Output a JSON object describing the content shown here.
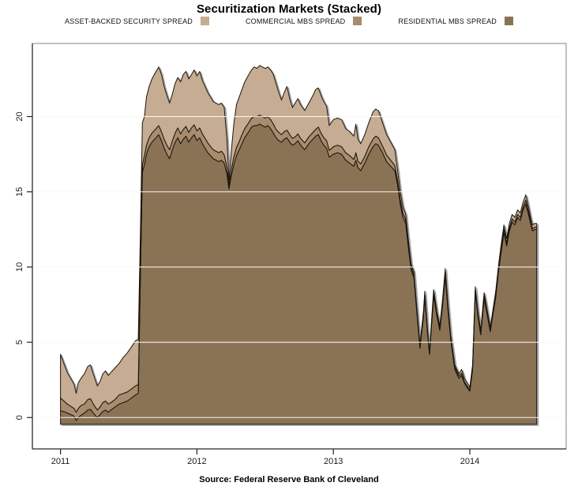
{
  "header": {
    "title": "Securitization Markets (Stacked)"
  },
  "legend": {
    "items": [
      {
        "label": "ASSET-BACKED SECURITY SPREAD",
        "color": "#c5ac92"
      },
      {
        "label": "COMMERCIAL MBS SPREAD",
        "color": "#a88c6e"
      },
      {
        "label": "RESIDENTIAL MBS SPREAD",
        "color": "#8a7355"
      }
    ]
  },
  "footer": {
    "source": "Source: Federal Reserve Bank of Cleveland"
  },
  "chart_data": {
    "type": "area",
    "stacked": true,
    "title": "Securitization Markets (Stacked)",
    "xlabel": "",
    "ylabel": "",
    "x_ticks": [
      2011,
      2012,
      2013,
      2014
    ],
    "y_ticks": [
      0,
      5,
      10,
      15,
      20
    ],
    "xlim": [
      2010.79,
      2014.71
    ],
    "ylim": [
      -2.1,
      24.9
    ],
    "grid": true,
    "legend_position": "top",
    "baseline": -0.45,
    "outline_color": "#1c130a",
    "gridline_color": "#ebebeb",
    "gridline_overlay_color": "rgba(255,255,255,0.8)",
    "box_color": "#a8a8a8",
    "axis_color": "#3c3c3c",
    "tick_color": "#222222",
    "label_color": "#1a1a1a",
    "x": [
      2011.0,
      2011.025,
      2011.05,
      2011.075,
      2011.1,
      2011.115,
      2011.13,
      2011.15,
      2011.175,
      2011.2,
      2011.22,
      2011.24,
      2011.27,
      2011.29,
      2011.31,
      2011.33,
      2011.35,
      2011.37,
      2011.4,
      2011.43,
      2011.46,
      2011.49,
      2011.52,
      2011.55,
      2011.57,
      2011.585,
      2011.6,
      2011.615,
      2011.63,
      2011.65,
      2011.67,
      2011.7,
      2011.72,
      2011.74,
      2011.76,
      2011.78,
      2011.8,
      2011.82,
      2011.84,
      2011.86,
      2011.88,
      2011.9,
      2011.92,
      2011.94,
      2011.96,
      2011.98,
      2012.0,
      2012.02,
      2012.04,
      2012.06,
      2012.08,
      2012.1,
      2012.12,
      2012.14,
      2012.16,
      2012.18,
      2012.2,
      2012.22,
      2012.235,
      2012.25,
      2012.27,
      2012.29,
      2012.31,
      2012.33,
      2012.35,
      2012.38,
      2012.4,
      2012.42,
      2012.44,
      2012.46,
      2012.48,
      2012.5,
      2012.52,
      2012.54,
      2012.56,
      2012.58,
      2012.6,
      2012.62,
      2012.64,
      2012.66,
      2012.68,
      2012.7,
      2012.72,
      2012.74,
      2012.76,
      2012.79,
      2012.82,
      2012.85,
      2012.87,
      2012.89,
      2012.91,
      2012.93,
      2012.95,
      2012.97,
      2013.0,
      2013.03,
      2013.06,
      2013.09,
      2013.12,
      2013.15,
      2013.165,
      2013.18,
      2013.2,
      2013.23,
      2013.26,
      2013.29,
      2013.31,
      2013.33,
      2013.36,
      2013.39,
      2013.42,
      2013.45,
      2013.47,
      2013.49,
      2013.51,
      2013.53,
      2013.55,
      2013.57,
      2013.59,
      2013.61,
      2013.635,
      2013.66,
      2013.67,
      2013.69,
      2013.705,
      2013.72,
      2013.735,
      2013.76,
      2013.78,
      2013.8,
      2013.82,
      2013.84,
      2013.86,
      2013.89,
      2013.92,
      2013.94,
      2013.96,
      2013.98,
      2014.0,
      2014.02,
      2014.04,
      2014.06,
      2014.08,
      2014.105,
      2014.13,
      2014.15,
      2014.17,
      2014.19,
      2014.21,
      2014.23,
      2014.25,
      2014.27,
      2014.29,
      2014.31,
      2014.33,
      2014.35,
      2014.37,
      2014.39,
      2014.41,
      2014.43,
      2014.45,
      2014.46,
      2014.475,
      2014.49
    ],
    "series": [
      {
        "name": "RESIDENTIAL MBS SPREAD",
        "color": "#8a7355",
        "values": [
          0.45,
          0.4,
          0.3,
          0.2,
          0.1,
          -0.2,
          0.0,
          0.15,
          0.3,
          0.5,
          0.55,
          0.3,
          0.0,
          0.2,
          0.4,
          0.5,
          0.35,
          0.5,
          0.7,
          0.9,
          1.0,
          1.1,
          1.3,
          1.5,
          1.6,
          9.0,
          16.3,
          16.8,
          17.5,
          18.0,
          18.3,
          18.6,
          18.8,
          18.4,
          17.9,
          17.5,
          17.2,
          17.8,
          18.3,
          18.6,
          18.2,
          18.5,
          18.7,
          18.3,
          18.6,
          18.8,
          18.4,
          18.6,
          18.2,
          17.9,
          17.6,
          17.4,
          17.2,
          17.1,
          17.0,
          17.1,
          16.9,
          16.2,
          15.2,
          16.0,
          16.8,
          17.4,
          17.8,
          18.2,
          18.6,
          19.0,
          19.3,
          19.4,
          19.4,
          19.5,
          19.4,
          19.3,
          19.4,
          19.2,
          18.9,
          18.6,
          18.4,
          18.3,
          18.5,
          18.6,
          18.3,
          18.1,
          18.2,
          18.4,
          18.1,
          17.8,
          18.2,
          18.5,
          18.7,
          18.8,
          18.4,
          18.1,
          17.9,
          17.3,
          17.5,
          17.6,
          17.5,
          17.1,
          16.9,
          16.7,
          17.1,
          16.6,
          16.4,
          16.9,
          17.5,
          18.0,
          18.2,
          18.1,
          17.6,
          17.0,
          16.7,
          16.4,
          15.5,
          14.2,
          13.3,
          12.9,
          11.3,
          9.8,
          9.3,
          7.2,
          4.6,
          6.7,
          8.0,
          5.6,
          4.2,
          6.2,
          8.1,
          6.7,
          5.8,
          7.4,
          9.4,
          7.1,
          5.2,
          3.2,
          2.6,
          2.8,
          2.3,
          2.0,
          1.75,
          3.2,
          8.3,
          6.7,
          5.5,
          7.9,
          6.7,
          5.7,
          6.9,
          8.0,
          9.7,
          11.0,
          12.3,
          11.4,
          12.4,
          13.0,
          12.8,
          13.3,
          13.1,
          13.8,
          14.2,
          13.5,
          12.7,
          12.4,
          12.5,
          12.5
        ]
      },
      {
        "name": "COMMERCIAL MBS SPREAD",
        "color": "#a88c6e",
        "values": [
          0.85,
          0.7,
          0.6,
          0.55,
          0.5,
          0.55,
          0.6,
          0.65,
          0.6,
          0.7,
          0.7,
          0.6,
          0.5,
          0.5,
          0.6,
          0.6,
          0.55,
          0.5,
          0.5,
          0.6,
          0.6,
          0.6,
          0.6,
          0.6,
          0.6,
          0.5,
          0.5,
          0.6,
          0.6,
          0.6,
          0.6,
          0.6,
          0.6,
          0.6,
          0.6,
          0.6,
          0.6,
          0.6,
          0.6,
          0.65,
          0.65,
          0.65,
          0.65,
          0.65,
          0.65,
          0.65,
          0.65,
          0.65,
          0.65,
          0.65,
          0.65,
          0.6,
          0.6,
          0.6,
          0.6,
          0.6,
          0.55,
          0.45,
          0.25,
          0.4,
          0.5,
          0.55,
          0.55,
          0.6,
          0.6,
          0.6,
          0.6,
          0.6,
          0.6,
          0.6,
          0.6,
          0.6,
          0.6,
          0.6,
          0.6,
          0.55,
          0.55,
          0.5,
          0.5,
          0.5,
          0.5,
          0.45,
          0.45,
          0.45,
          0.45,
          0.45,
          0.45,
          0.45,
          0.45,
          0.5,
          0.5,
          0.5,
          0.5,
          0.45,
          0.5,
          0.5,
          0.5,
          0.5,
          0.5,
          0.45,
          0.5,
          0.45,
          0.45,
          0.45,
          0.5,
          0.5,
          0.5,
          0.5,
          0.45,
          0.45,
          0.4,
          0.35,
          0.3,
          0.3,
          0.3,
          0.25,
          0.2,
          0.2,
          0.2,
          0.15,
          0.15,
          0.15,
          0.2,
          0.15,
          0.1,
          0.15,
          0.2,
          0.15,
          0.15,
          0.2,
          0.25,
          0.2,
          0.15,
          0.15,
          0.15,
          0.15,
          0.1,
          0.1,
          0.1,
          0.1,
          0.15,
          0.1,
          0.1,
          0.15,
          0.1,
          0.1,
          0.1,
          0.15,
          0.15,
          0.2,
          0.2,
          0.2,
          0.2,
          0.2,
          0.2,
          0.2,
          0.2,
          0.2,
          0.25,
          0.2,
          0.15,
          0.15,
          0.15,
          0.15
        ]
      },
      {
        "name": "ASSET-BACKED SECURITY SPREAD",
        "color": "#c5ac92",
        "values": [
          2.9,
          2.5,
          2.1,
          1.85,
          1.6,
          1.25,
          1.7,
          1.8,
          2.0,
          2.2,
          2.25,
          2.0,
          1.6,
          1.7,
          1.9,
          2.0,
          1.9,
          2.0,
          2.1,
          2.1,
          2.4,
          2.6,
          2.8,
          3.0,
          3.0,
          2.5,
          2.8,
          2.6,
          3.2,
          3.4,
          3.6,
          3.8,
          3.9,
          3.8,
          3.5,
          3.3,
          3.1,
          3.1,
          3.3,
          3.35,
          3.45,
          3.65,
          3.65,
          3.55,
          3.55,
          3.65,
          3.65,
          3.75,
          3.55,
          3.45,
          3.35,
          3.3,
          3.2,
          3.2,
          3.2,
          3.2,
          3.15,
          1.85,
          0.35,
          1.1,
          2.2,
          2.85,
          2.95,
          3.0,
          3.1,
          3.2,
          3.2,
          3.3,
          3.2,
          3.3,
          3.3,
          3.3,
          3.3,
          3.3,
          3.3,
          3.05,
          2.65,
          2.3,
          2.6,
          2.9,
          2.4,
          2.05,
          2.25,
          2.35,
          2.25,
          2.15,
          2.25,
          2.45,
          2.65,
          2.6,
          2.5,
          2.4,
          2.3,
          1.65,
          1.8,
          1.8,
          1.8,
          1.6,
          1.6,
          1.55,
          1.9,
          1.45,
          1.35,
          1.45,
          1.6,
          1.8,
          1.8,
          1.8,
          1.55,
          1.35,
          1.2,
          1.05,
          0.7,
          0.5,
          0.4,
          0.35,
          0.3,
          0.2,
          0.2,
          0.15,
          0.15,
          0.15,
          0.2,
          0.15,
          0.1,
          0.15,
          0.2,
          0.15,
          0.15,
          0.2,
          0.25,
          0.2,
          0.15,
          0.15,
          0.15,
          0.25,
          0.2,
          0.2,
          0.15,
          0.2,
          0.25,
          0.2,
          0.2,
          0.25,
          0.2,
          0.2,
          0.2,
          0.25,
          0.25,
          0.3,
          0.3,
          0.3,
          0.3,
          0.3,
          0.3,
          0.3,
          0.3,
          0.3,
          0.35,
          0.3,
          0.25,
          0.25,
          0.25,
          0.25
        ]
      }
    ]
  }
}
